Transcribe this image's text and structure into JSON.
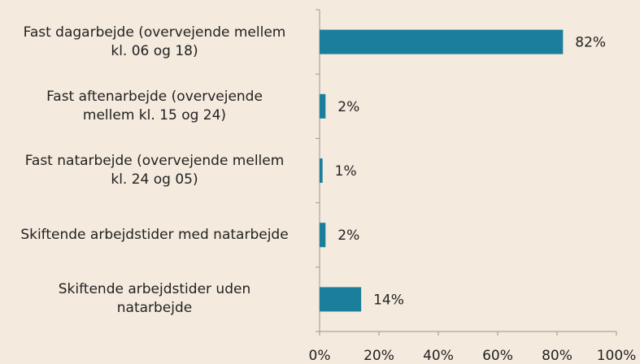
{
  "chart_data": {
    "type": "bar",
    "orientation": "horizontal",
    "categories": [
      "Fast dagarbejde (overvejende mellem\nkl. 06 og 18)",
      "Fast aftenarbejde (overvejende\nmellem kl. 15 og 24)",
      "Fast natarbejde (overvejende mellem\nkl. 24 og 05)",
      "Skiftende arbejdstider med natarbejde",
      "Skiftende arbejdstider uden\nnatarbejde"
    ],
    "values": [
      82,
      2,
      1,
      2,
      14
    ],
    "value_labels": [
      "82%",
      "2%",
      "1%",
      "2%",
      "14%"
    ],
    "color": "#1b7e9b",
    "xlim": [
      0,
      100
    ],
    "xticks": [
      {
        "value": 0,
        "label": "0%"
      },
      {
        "value": 20,
        "label": "20%"
      },
      {
        "value": 40,
        "label": "40%"
      },
      {
        "value": 60,
        "label": "60%"
      },
      {
        "value": 80,
        "label": "80%"
      },
      {
        "value": 100,
        "label": "100%"
      }
    ],
    "grid": false
  }
}
